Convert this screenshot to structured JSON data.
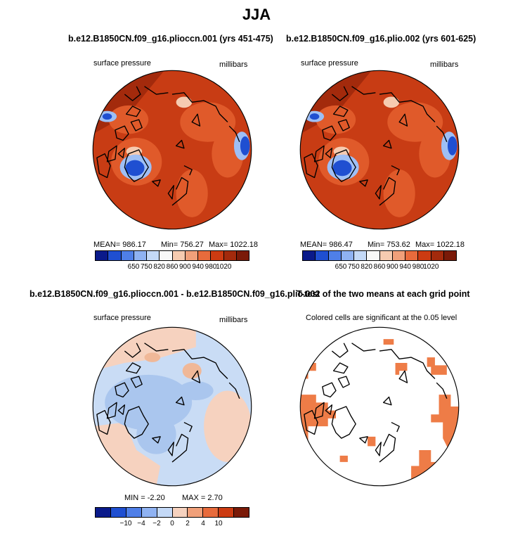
{
  "title": "JJA",
  "colors": {
    "red_dark": "#a32a0c",
    "red_mid": "#c83c14",
    "red_light": "#e05a2a",
    "blue_deep": "#1f4fd1",
    "blue_light": "#9ebff5",
    "diff_blue": "#c9dcf5",
    "diff_blue2": "#aac6ee",
    "diff_peach": "#f6d2bf",
    "diff_peach2": "#f0b898",
    "sig_orange": "#ee7c47"
  },
  "panels": [
    {
      "title": "b.e12.B1850CN.f09_g16.plioccn.001 (yrs 451-475)",
      "left_label": "surface pressure",
      "right_label": "millibars",
      "stats": {
        "mean": "MEAN= 986.17",
        "min": "Min= 756.27",
        "max": "Max= 1022.18"
      }
    },
    {
      "title": "b.e12.B1850CN.f09_g16.plio.002 (yrs 601-625)",
      "left_label": "surface pressure",
      "right_label": "millibars",
      "stats": {
        "mean": "MEAN= 986.47",
        "min": "Min= 753.62",
        "max": "Max= 1022.18"
      }
    },
    {
      "title": "b.e12.B1850CN.f09_g16.plioccn.001 - b.e12.B1850CN.f09_g16.plio.002",
      "left_label": "surface pressure",
      "right_label": "millibars",
      "stats": {
        "min": "MIN =   -2.20",
        "max": "MAX =    2.70"
      }
    },
    {
      "title": "T-test of the two means at each grid point",
      "subtitle": "Colored cells are significant at the 0.05 level"
    }
  ],
  "chart_data": [
    {
      "type": "heatmap",
      "title": "b.e12.B1850CN.f09_g16.plioccn.001 (yrs 451-475)",
      "variable": "surface pressure",
      "units": "millibars",
      "mean": 986.17,
      "min": 756.27,
      "max": 1022.18,
      "colorbar": {
        "ticks": [
          "650",
          "750",
          "820",
          "860",
          "900",
          "940",
          "980",
          "1020"
        ],
        "colors": [
          "#0a1a8a",
          "#1f4fd1",
          "#4f7fe8",
          "#8fb2f2",
          "#c4d9f7",
          "#f8f8f8",
          "#f6cbb0",
          "#f0a07a",
          "#e86b3c",
          "#cc3b12",
          "#a32a0c",
          "#7a1a08"
        ]
      }
    },
    {
      "type": "heatmap",
      "title": "b.e12.B1850CN.f09_g16.plio.002 (yrs 601-625)",
      "variable": "surface pressure",
      "units": "millibars",
      "mean": 986.47,
      "min": 753.62,
      "max": 1022.18,
      "colorbar": {
        "ticks": [
          "650",
          "750",
          "820",
          "860",
          "900",
          "940",
          "980",
          "1020"
        ],
        "colors": [
          "#0a1a8a",
          "#1f4fd1",
          "#4f7fe8",
          "#8fb2f2",
          "#c4d9f7",
          "#f8f8f8",
          "#f6cbb0",
          "#f0a07a",
          "#e86b3c",
          "#cc3b12",
          "#a32a0c",
          "#7a1a08"
        ]
      }
    },
    {
      "type": "heatmap",
      "title": "b.e12.B1850CN.f09_g16.plioccn.001 - b.e12.B1850CN.f09_g16.plio.002",
      "variable": "surface pressure",
      "units": "millibars",
      "min": -2.2,
      "max": 2.7,
      "colorbar": {
        "ticks": [
          "-10",
          "-4",
          "-2",
          "0",
          "2",
          "4",
          "10"
        ],
        "colors": [
          "#0a1a8a",
          "#1f4fd1",
          "#4f7fe8",
          "#8fb2f2",
          "#c4d9f7",
          "#f6d2bf",
          "#f0a07a",
          "#e86b3c",
          "#cc3b12",
          "#7a1a08"
        ]
      }
    },
    {
      "type": "heatmap",
      "title": "T-test of the two means at each grid point",
      "note": "Colored cells are significant at the 0.05 level"
    }
  ]
}
